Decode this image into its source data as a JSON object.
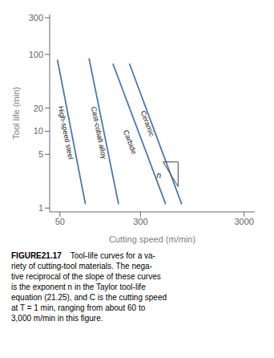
{
  "chart_data": {
    "type": "line",
    "xlabel": "Cutting speed (m/min)",
    "ylabel": "Tool life (min)",
    "log": true,
    "grid": false,
    "color": "#4a78b0",
    "xlim": [
      39.81072,
      3801.894
    ],
    "ylim": [
      0.8912509,
      331.1311
    ],
    "xticks": [
      50,
      300,
      3000
    ],
    "yticks": [
      1,
      5,
      10,
      20,
      100,
      300
    ],
    "series": [
      {
        "name": "High-speed steel",
        "x": [
          47.31513,
          88.10488
        ],
        "values": [
          85.1138,
          1.122018
        ]
      },
      {
        "name": "Cast-cobalt alloy",
        "x": [
          95.49926,
          184.0772
        ],
        "values": [
          89.12509,
          1.122018
        ]
      },
      {
        "name": "Carbide",
        "x": [
          162.181,
          524.8075
        ],
        "values": [
          75.85776,
          1.122018
        ]
      },
      {
        "name": "Ceramic",
        "x": [
          234.4229,
          749.8942
        ],
        "values": [
          75.85776,
          1.122018
        ]
      }
    ],
    "annotations": [
      {
        "text": "High-speed steel",
        "x": 56.88529,
        "y": 9.549926
      },
      {
        "text": "Cast-cobalt alloy",
        "x": 118.8502,
        "y": 9.549926
      },
      {
        "text": "Carbide",
        "x": 237.1374,
        "y": 7.24436
      },
      {
        "text": "Ceramic",
        "x": 350.7519,
        "y": 12.58925
      }
    ],
    "slope_triangle": {
      "x": [
        495.4502,
        691.831,
        691.831,
        495.4502
      ],
      "y": [
        3.981072,
        3.981072,
        1.905461,
        3.981072
      ],
      "label": "n",
      "label_x": 473.1513,
      "label_y": 2.691535
    },
    "caption_bold": "FIGURE​21.17",
    "caption": "    Tool-life curves for a va-\nriety of cutting-tool materials. The nega-\ntive reciprocal of the slope of these curves\nis the exponent n in the Taylor tool-life\nequation (21.25), and C is the cutting speed\nat T = 1 min, ranging from about 60 to\n3,000 m/min in this figure."
  }
}
